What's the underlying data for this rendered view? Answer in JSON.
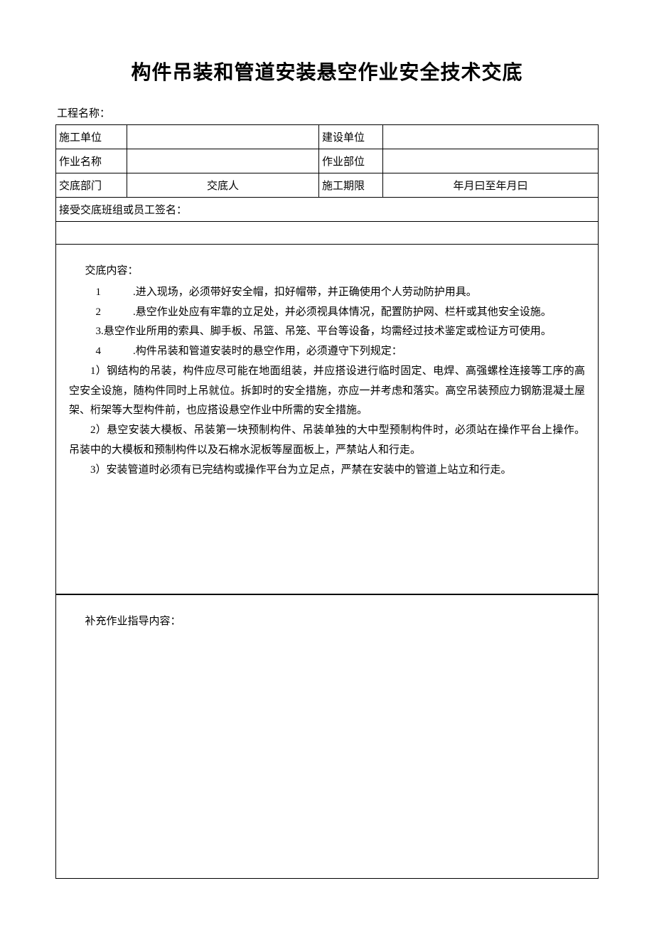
{
  "title": "构件吊装和管道安装悬空作业安全技术交底",
  "project_label": "工程名称：",
  "header": {
    "row1": {
      "c1": "施工单位",
      "c2": "",
      "c3": "建设单位",
      "c4": ""
    },
    "row2": {
      "c1": "作业名称",
      "c2": "",
      "c3": "作业部位",
      "c4": ""
    },
    "row3": {
      "c1": "交底部门",
      "c2": "交底人",
      "c3": "施工期限",
      "c4": "年月曰至年月曰"
    }
  },
  "sign_label": "接受交底班组或员工签名：",
  "content": {
    "heading": "交底内容：",
    "items": [
      {
        "num": "1",
        "text": ".进入现场，必须带好安全帽，扣好帽带，并正确使用个人劳动防护用具。"
      },
      {
        "num": "2",
        "text": ".悬空作业处应有牢靠的立足处，并必须视具体情况，配置防护网、栏杆或其他安全设施。"
      }
    ],
    "item3": "3.悬空作业所用的索具、脚手板、吊篮、吊笼、平台等设备，均需经过技术鉴定或检证方可使用。",
    "item4": {
      "num": "4",
      "text": ".构件吊装和管道安装时的悬空作用，必须遵守下列规定："
    },
    "subs": [
      "1）钢结构的吊装，构件应尽可能在地面组装，并应搭设进行临时固定、电焊、高强螺栓连接等工序的高空安全设施，随构件同时上吊就位。拆卸时的安全措施，亦应一并考虑和落实。高空吊装预应力钢筋混凝土屋架、桁架等大型构件前，也应搭设悬空作业中所需的安全措施。",
      "2）悬空安装大模板、吊装第一块预制构件、吊装单独的大中型预制构件时，必须站在操作平台上操作。吊装中的大模板和预制构件以及石棉水泥板等屋面板上，严禁站人和行走。",
      "3）安装管道时必须有已完结构或操作平台为立足点，严禁在安装中的管道上站立和行走。"
    ]
  },
  "supplement_heading": "补充作业指导内容："
}
